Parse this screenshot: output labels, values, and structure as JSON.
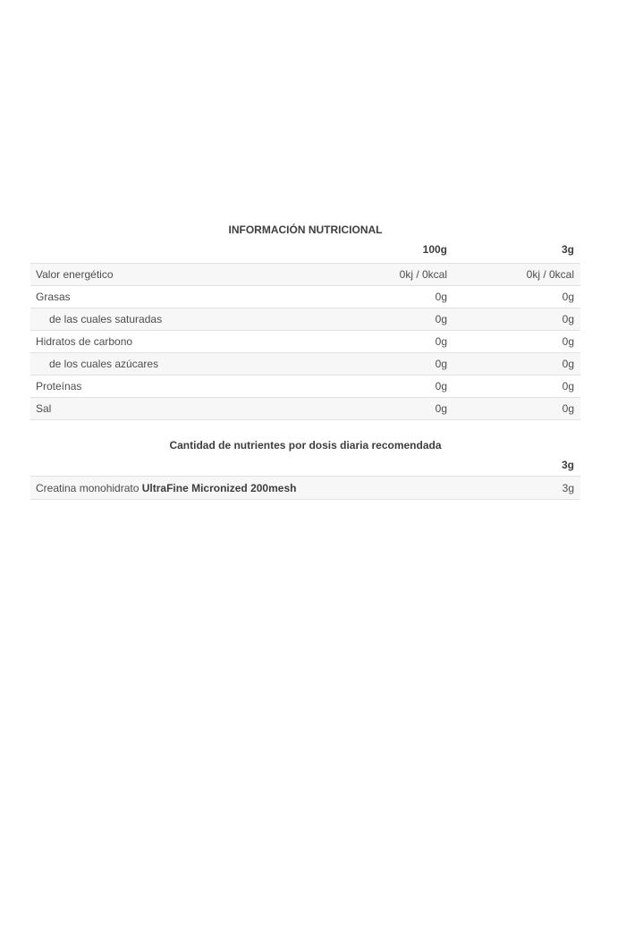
{
  "colors": {
    "text_regular": "#4d4d4d",
    "text_bold": "#3e3e3e",
    "border": "#e1e1e1",
    "stripe": "#f7f7f7",
    "page_bg": "#ffffff"
  },
  "nutrition_table": {
    "title": "INFORMACIÓN NUTRICIONAL",
    "columns": [
      "100g",
      "3g"
    ],
    "rows": [
      {
        "label": "Valor energético",
        "indent": false,
        "per100g": "0kj / 0kcal",
        "per3g": "0kj / 0kcal"
      },
      {
        "label": "Grasas",
        "indent": false,
        "per100g": "0g",
        "per3g": "0g"
      },
      {
        "label": "de las cuales saturadas",
        "indent": true,
        "per100g": "0g",
        "per3g": "0g"
      },
      {
        "label": "Hidratos de carbono",
        "indent": false,
        "per100g": "0g",
        "per3g": "0g"
      },
      {
        "label": "de los cuales azúcares",
        "indent": true,
        "per100g": "0g",
        "per3g": "0g"
      },
      {
        "label": "Proteínas",
        "indent": false,
        "per100g": "0g",
        "per3g": "0g"
      },
      {
        "label": "Sal",
        "indent": false,
        "per100g": "0g",
        "per3g": "0g"
      }
    ]
  },
  "dose_table": {
    "title": "Cantidad de nutrientes por dosis diaria recomendada",
    "column": "3g",
    "rows": [
      {
        "label_regular": "Creatina monohidrato ",
        "label_bold": "UltraFine Micronized 200mesh",
        "value": "3g"
      }
    ]
  }
}
